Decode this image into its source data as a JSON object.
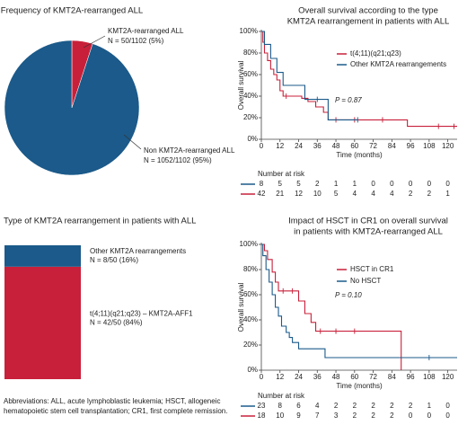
{
  "chart_data": [
    {
      "type": "pie",
      "title": "Frequency of KMT2A-rearranged ALL",
      "categories": [
        "KMT2A-rearranged ALL",
        "Non KMT2A-rearranged ALL"
      ],
      "values": [
        5,
        95
      ],
      "value_labels": [
        "N = 50/1102 (5%)",
        "N = 1052/1102 (95%)"
      ],
      "colors": [
        "#c8203a",
        "#1b5a8a"
      ]
    },
    {
      "type": "stacked_bar",
      "title": "Type of KMT2A rearrangement in patients with ALL",
      "series": [
        {
          "name": "t(4;11)(q21;q23) – KMT2A-AFF1",
          "color": "#c8203a",
          "values": [
            84
          ],
          "value_labels": [
            "N = 42/50 (84%)"
          ]
        },
        {
          "name": "Other KMT2A rearrangements",
          "color": "#1b5a8a",
          "values": [
            16
          ],
          "value_labels": [
            "N = 8/50 (16%)"
          ]
        }
      ],
      "ylim": [
        0,
        100
      ]
    },
    {
      "type": "step",
      "title": [
        "Overall survival according to the type",
        "KMT2A rearrangement in patients with ALL"
      ],
      "ylabel": "Overall survival",
      "xlabel": "Time (months)",
      "annotation": "P = 0.87",
      "xlim": [
        0,
        126
      ],
      "xticks": [
        0,
        12,
        24,
        36,
        48,
        60,
        72,
        84,
        96,
        108,
        120
      ],
      "ylim": [
        0,
        100
      ],
      "yticks": [
        {
          "value": 0,
          "label": "0%"
        },
        {
          "value": 20,
          "label": "20%"
        },
        {
          "value": 40,
          "label": "40%"
        },
        {
          "value": 60,
          "label": "60%"
        },
        {
          "value": 80,
          "label": "80%"
        },
        {
          "value": 100,
          "label": "100%"
        }
      ],
      "series": [
        {
          "name": "t(4;11)(q21;q23)",
          "color": "#c8203a",
          "x": [
            0,
            1,
            2,
            4,
            6,
            8,
            10,
            12,
            14,
            26,
            30,
            35,
            40,
            43,
            94,
            126
          ],
          "values": [
            100,
            90,
            80,
            73,
            65,
            60,
            55,
            45,
            40,
            38,
            35,
            30,
            25,
            18,
            12,
            12
          ],
          "censor_x": [
            16,
            48,
            60,
            78,
            114,
            124
          ],
          "censor_y": [
            40,
            18,
            18,
            18,
            12,
            12
          ]
        },
        {
          "name": "Other KMT2A rearrangements",
          "color": "#1b5a8a",
          "x": [
            0,
            2,
            6,
            10,
            14,
            28,
            43,
            62
          ],
          "values": [
            100,
            88,
            75,
            62,
            50,
            37,
            18,
            18
          ],
          "censor_x": [
            36,
            62
          ],
          "censor_y": [
            37,
            18
          ]
        }
      ],
      "risk_table": {
        "title": "Number at risk",
        "rows": [
          {
            "color": "#1b5a8a",
            "values": [
              8,
              5,
              5,
              2,
              1,
              1,
              0,
              0,
              0,
              0,
              0
            ]
          },
          {
            "color": "#c8203a",
            "values": [
              42,
              21,
              12,
              10,
              5,
              4,
              4,
              4,
              2,
              2,
              1
            ]
          }
        ]
      }
    },
    {
      "type": "step",
      "title": [
        "Impact of HSCT in CR1 on overall survival",
        "in patients with KMT2A-rearranged ALL"
      ],
      "ylabel": "Overall survival",
      "xlabel": "Time (months)",
      "annotation": "P = 0.10",
      "xlim": [
        0,
        126
      ],
      "xticks": [
        0,
        12,
        24,
        36,
        48,
        60,
        72,
        84,
        96,
        108,
        120
      ],
      "ylim": [
        0,
        100
      ],
      "yticks": [
        {
          "value": 0,
          "label": "0%"
        },
        {
          "value": 20,
          "label": "20%"
        },
        {
          "value": 40,
          "label": "40%"
        },
        {
          "value": 60,
          "label": "60%"
        },
        {
          "value": 80,
          "label": "80%"
        },
        {
          "value": 100,
          "label": "100%"
        }
      ],
      "series": [
        {
          "name": "HSCT in CR1",
          "color": "#c8203a",
          "x": [
            0,
            2,
            4,
            7,
            9,
            11,
            24,
            28,
            32,
            35,
            90
          ],
          "values": [
            100,
            95,
            88,
            78,
            70,
            63,
            55,
            45,
            38,
            31,
            0
          ],
          "censor_x": [
            14,
            20,
            38,
            48,
            60
          ],
          "censor_y": [
            63,
            63,
            31,
            31,
            31
          ]
        },
        {
          "name": "No HSCT",
          "color": "#1b5a8a",
          "x": [
            0,
            1,
            3,
            5,
            7,
            9,
            11,
            13,
            16,
            18,
            20,
            24,
            41,
            126
          ],
          "values": [
            100,
            91,
            80,
            70,
            60,
            50,
            43,
            35,
            30,
            26,
            22,
            17,
            10,
            10
          ],
          "censor_x": [
            108
          ],
          "censor_y": [
            10
          ]
        }
      ],
      "risk_table": {
        "title": "Number at risk",
        "rows": [
          {
            "color": "#1b5a8a",
            "values": [
              23,
              8,
              6,
              4,
              2,
              2,
              2,
              2,
              2,
              1,
              0
            ]
          },
          {
            "color": "#c8203a",
            "values": [
              18,
              10,
              9,
              7,
              3,
              2,
              2,
              2,
              0,
              0,
              0
            ]
          }
        ]
      }
    }
  ],
  "footnote": [
    "Abbreviations: ALL, acute lymphoblastic leukemia; HSCT, allogeneic",
    "hematopoietic stem cell transplantation; CR1, first complete remission."
  ]
}
